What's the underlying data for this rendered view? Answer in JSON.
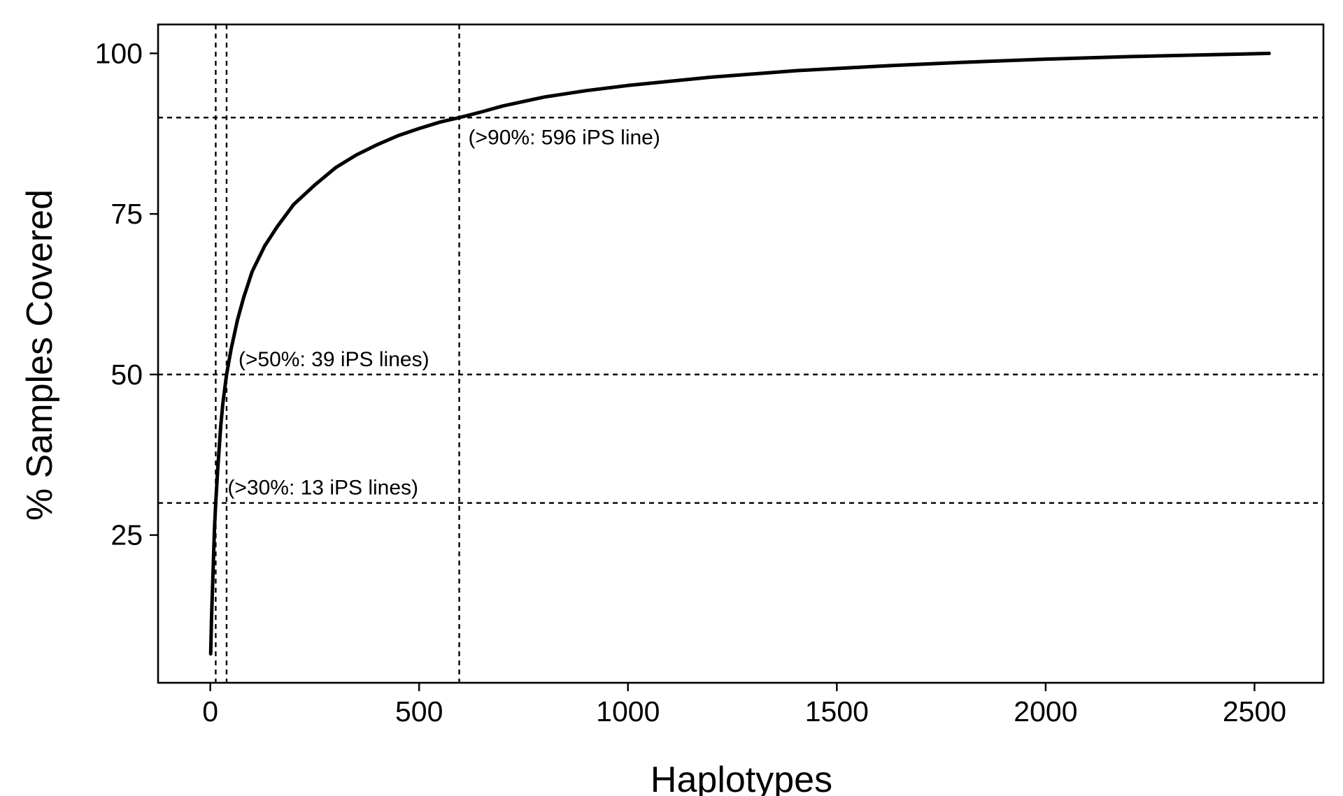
{
  "chart_data": {
    "type": "line",
    "title": "",
    "xlabel": "Haplotypes",
    "ylabel": "% Samples Covered",
    "xlim": [
      -125,
      2665
    ],
    "ylim": [
      2,
      104.5
    ],
    "xticks": [
      0,
      500,
      1000,
      1500,
      2000,
      2500
    ],
    "xtick_labels": [
      "0",
      "500",
      "1000",
      "1500",
      "2000",
      "2500"
    ],
    "yticks": [
      25,
      50,
      75,
      100
    ],
    "ytick_labels": [
      "25",
      "50",
      "75",
      "100"
    ],
    "grid": false,
    "legend": "none",
    "series": [
      {
        "color": "#000000",
        "x": [
          1,
          3,
          6,
          10,
          13,
          18,
          25,
          30,
          39,
          50,
          65,
          80,
          100,
          130,
          160,
          200,
          250,
          300,
          350,
          400,
          450,
          500,
          550,
          596,
          650,
          700,
          800,
          900,
          1000,
          1200,
          1400,
          1600,
          1800,
          2000,
          2200,
          2400,
          2535
        ],
        "y": [
          6.5,
          12,
          18,
          26,
          30,
          35.5,
          42,
          45.5,
          50,
          54,
          58.5,
          62,
          66,
          70,
          73,
          76.5,
          79.5,
          82.2,
          84.2,
          85.8,
          87.2,
          88.3,
          89.3,
          90,
          90.9,
          91.8,
          93.2,
          94.2,
          95,
          96.3,
          97.3,
          98,
          98.6,
          99.1,
          99.5,
          99.8,
          100
        ]
      }
    ],
    "reference_lines": {
      "horizontal": [
        30,
        50,
        90
      ],
      "vertical": [
        13,
        39,
        596
      ],
      "style": "dashed"
    },
    "annotations": [
      {
        "text": "(>30%: 13 iPS lines)",
        "x": 13,
        "y": 30
      },
      {
        "text": "(>50%: 39 iPS lines)",
        "x": 39,
        "y": 50
      },
      {
        "text": "(>90%: 596 iPS line)",
        "x": 596,
        "y": 90
      }
    ]
  }
}
